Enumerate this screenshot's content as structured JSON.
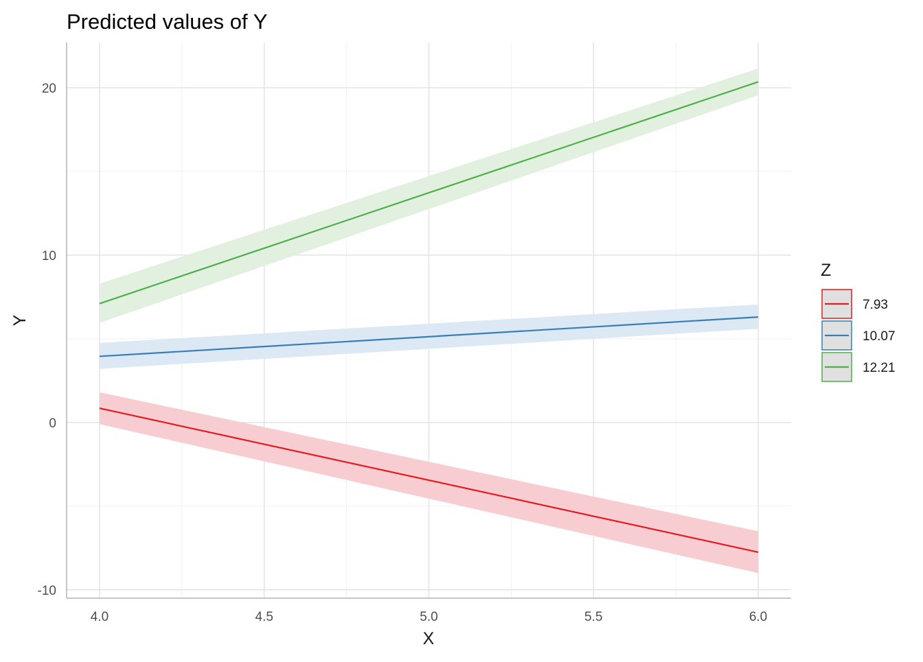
{
  "chart_data": {
    "type": "line",
    "title": "Predicted values of Y",
    "xlabel": "X",
    "ylabel": "Y",
    "xlim": [
      3.9,
      6.1
    ],
    "ylim": [
      -10.5,
      22.7
    ],
    "x_ticks": [
      4.0,
      4.5,
      5.0,
      5.5,
      6.0
    ],
    "x_tick_labels": [
      "4.0",
      "4.5",
      "5.0",
      "5.5",
      "6.0"
    ],
    "x_minor_ticks": [
      4.25,
      4.75,
      5.25,
      5.75
    ],
    "y_ticks": [
      -10,
      0,
      10,
      20
    ],
    "y_tick_labels": [
      "-10",
      "0",
      "10",
      "20"
    ],
    "y_minor_ticks": [
      -5,
      5,
      15
    ],
    "grid": true,
    "legend": {
      "title": "Z",
      "position": "right"
    },
    "x": [
      4.0,
      6.0
    ],
    "series": [
      {
        "name": "7.93",
        "color": "#E41A1C",
        "fill": "#F8CDD2",
        "values": [
          0.85,
          -7.75
        ],
        "lower": [
          -0.1,
          -9.0
        ],
        "upper": [
          1.8,
          -6.5
        ]
      },
      {
        "name": "10.07",
        "color": "#377EB8",
        "fill": "#DCE8F3",
        "values": [
          3.95,
          6.3
        ],
        "lower": [
          3.2,
          5.6
        ],
        "upper": [
          4.75,
          7.05
        ]
      },
      {
        "name": "12.21",
        "color": "#4DAF4A",
        "fill": "#E2F1DF",
        "values": [
          7.1,
          20.35
        ],
        "lower": [
          5.95,
          19.55
        ],
        "upper": [
          8.3,
          21.15
        ]
      }
    ]
  }
}
